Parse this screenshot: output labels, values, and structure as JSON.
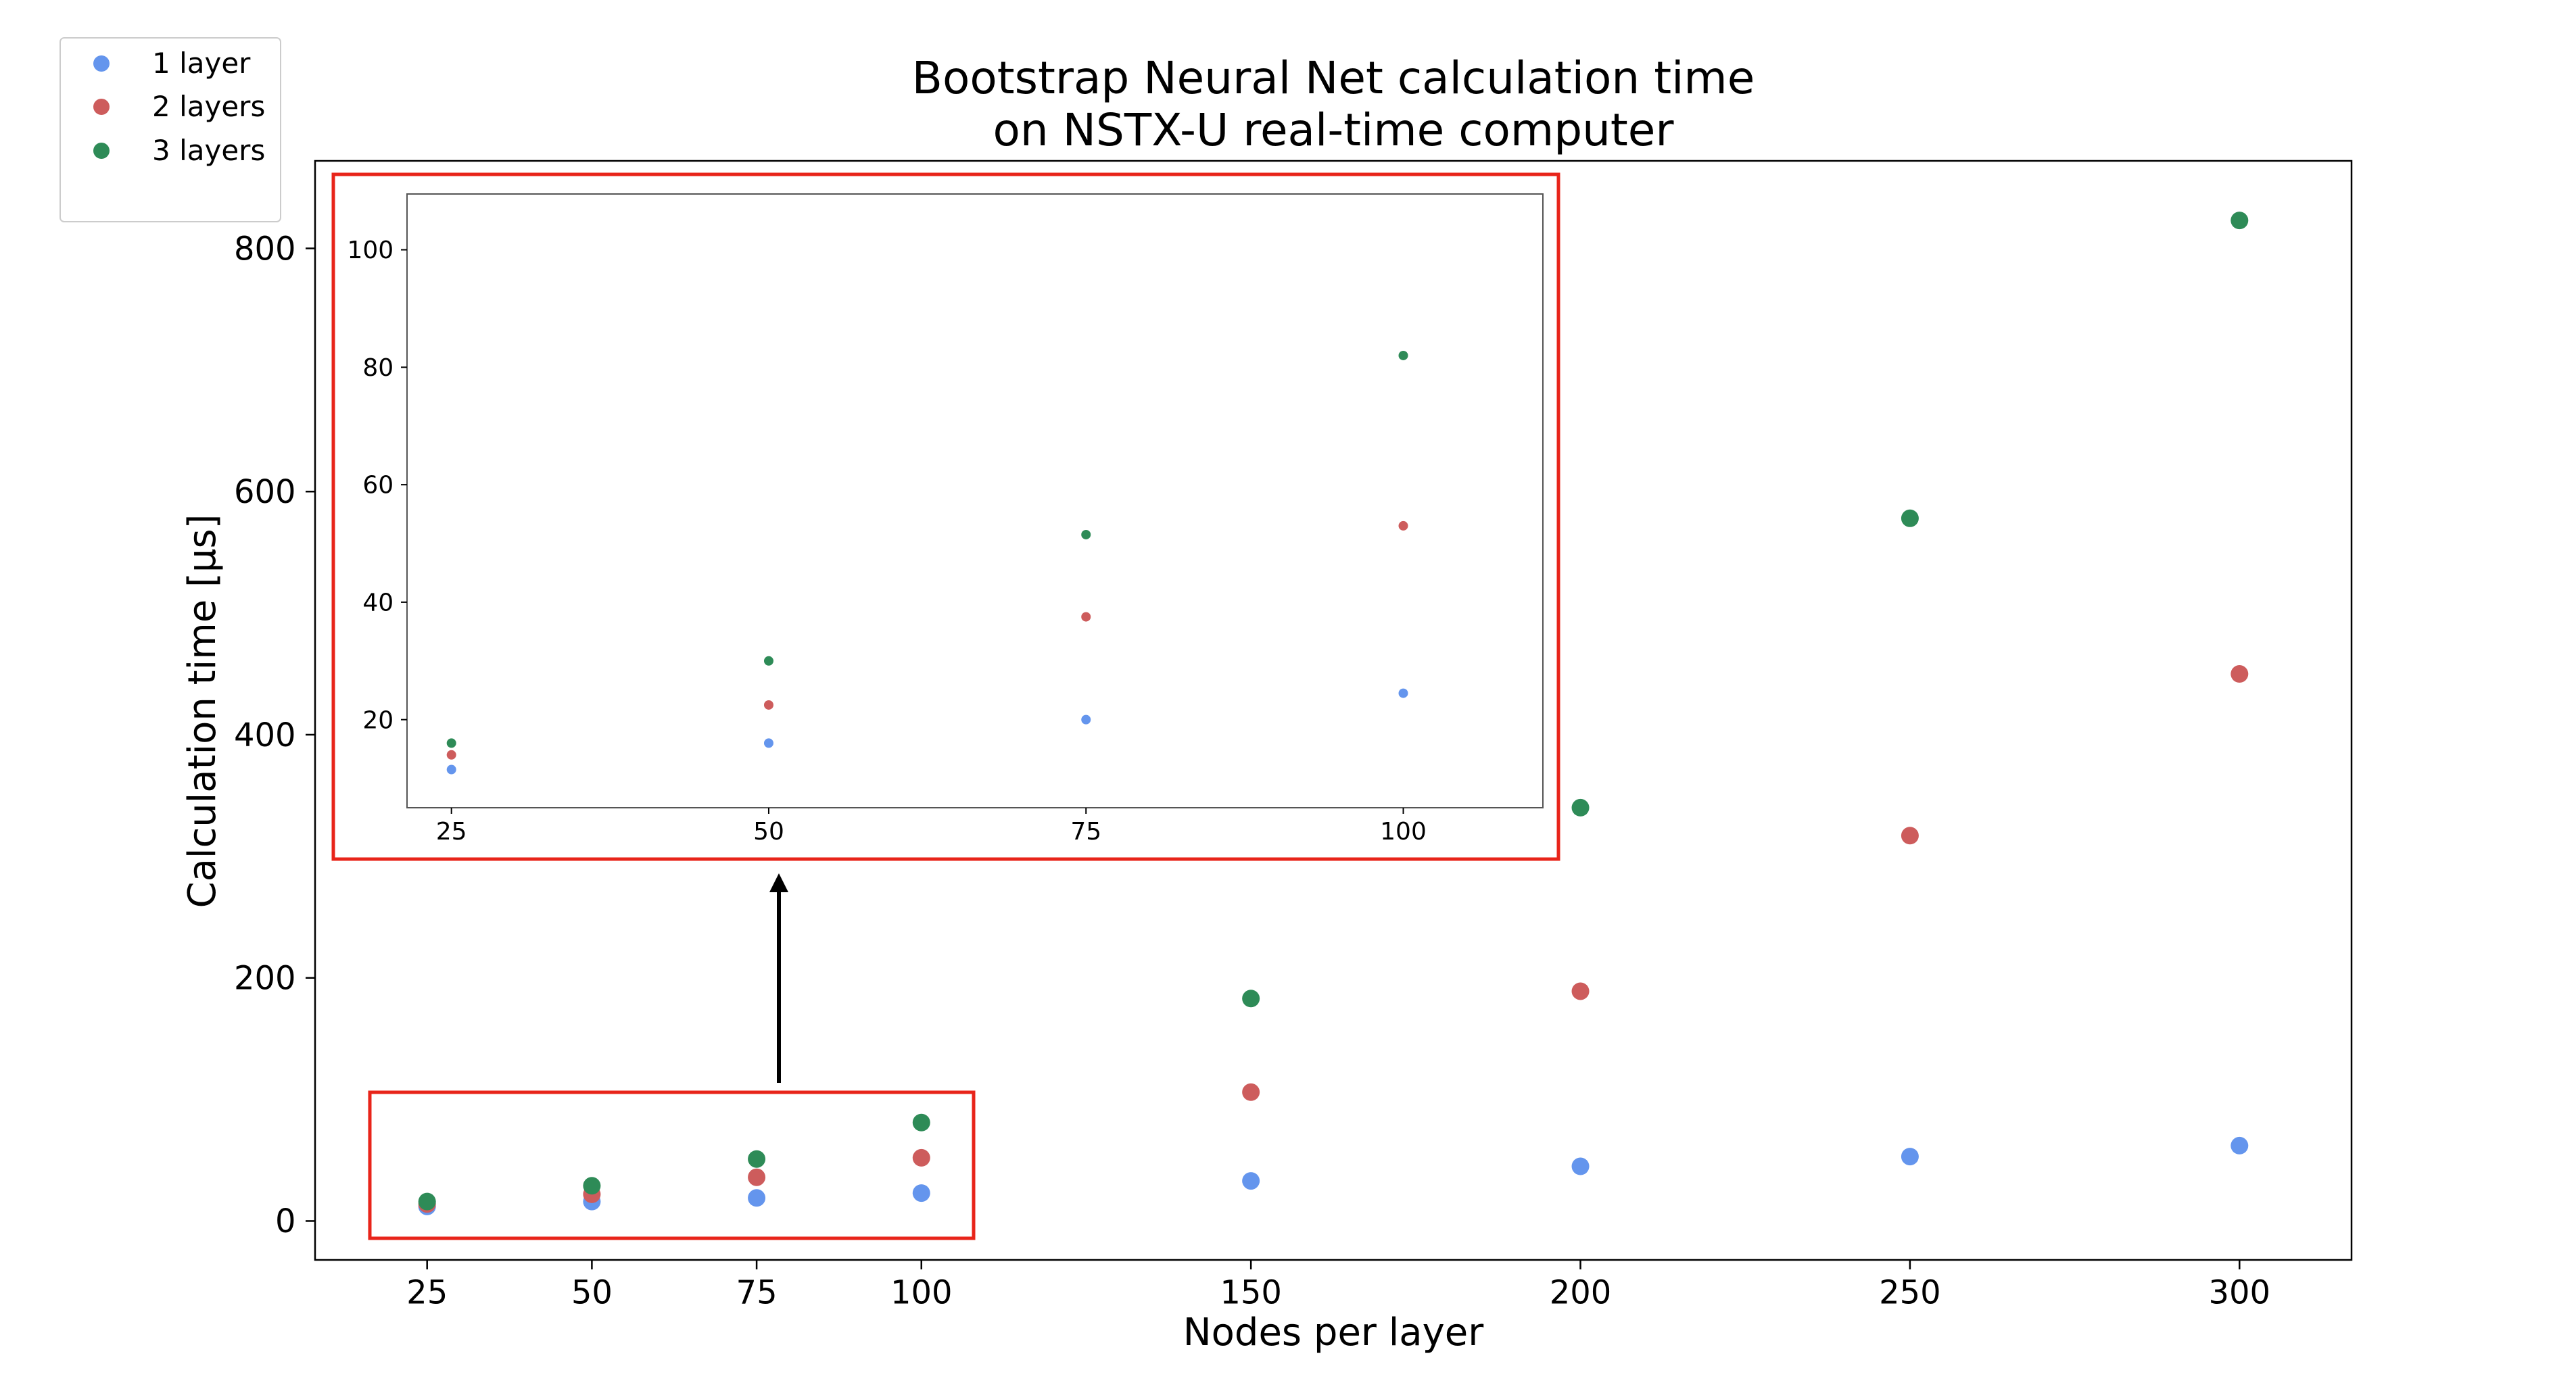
{
  "chart_data": [
    {
      "type": "scatter",
      "title": "Bootstrap Neural Net calculation time\non NSTX-U real-time computer",
      "xlabel": "Nodes per layer",
      "ylabel": "Calculation time [μs]",
      "x": [
        25,
        50,
        75,
        100,
        150,
        200,
        250,
        300
      ],
      "xticks": [
        "25",
        "50",
        "75",
        "100",
        "150",
        "200",
        "250",
        "300"
      ],
      "yticks": [
        "0",
        "200",
        "400",
        "600",
        "800"
      ],
      "xlim": [
        8,
        317
      ],
      "ylim": [
        -32,
        872
      ],
      "legend": "upper-left-outside",
      "grid": false,
      "series": [
        {
          "name": "1 layer",
          "color": "#6495ed",
          "values": [
            12,
            16,
            19,
            23,
            33,
            45,
            53,
            62
          ]
        },
        {
          "name": "2 layers",
          "color": "#cd5c5c",
          "values": [
            14,
            22,
            36,
            52,
            106,
            189,
            317,
            450
          ]
        },
        {
          "name": "3 layers",
          "color": "#2e8b57",
          "values": [
            16,
            29,
            51,
            81,
            183,
            340,
            578,
            823
          ]
        }
      ]
    },
    {
      "type": "scatter",
      "title": "",
      "xlabel": "",
      "ylabel": "",
      "x": [
        25,
        50,
        75,
        100
      ],
      "xticks": [
        "25",
        "50",
        "75",
        "100"
      ],
      "yticks": [
        "20",
        "40",
        "60",
        "80",
        "100"
      ],
      "xlim": [
        21.5,
        111
      ],
      "ylim": [
        5,
        109.5
      ],
      "series": [
        {
          "name": "1 layer",
          "color": "#6495ed",
          "values": [
            11.5,
            16,
            20,
            24.5
          ]
        },
        {
          "name": "2 layers",
          "color": "#cd5c5c",
          "values": [
            14,
            22.5,
            37.5,
            53
          ]
        },
        {
          "name": "3 layers",
          "color": "#2e8b57",
          "values": [
            16,
            30,
            51.5,
            82
          ]
        }
      ]
    }
  ]
}
